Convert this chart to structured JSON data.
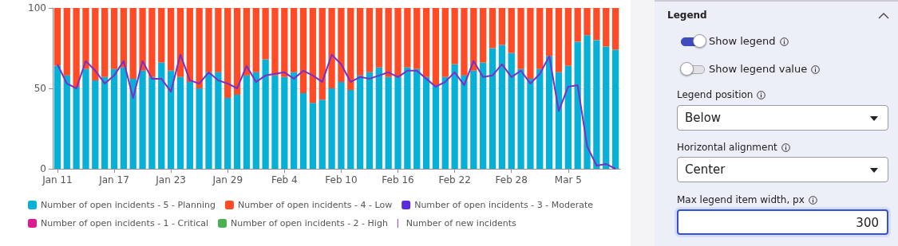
{
  "chart_data": {
    "type": "bar",
    "stacked": true,
    "categories": [
      "Jan 11",
      null,
      null,
      null,
      null,
      null,
      "Jan 17",
      null,
      null,
      null,
      null,
      null,
      "Jan 23",
      null,
      null,
      null,
      null,
      null,
      "Jan 29",
      null,
      null,
      null,
      null,
      null,
      "Feb 4",
      null,
      null,
      null,
      null,
      null,
      "Feb 10",
      null,
      null,
      null,
      null,
      null,
      "Feb 16",
      null,
      null,
      null,
      null,
      null,
      "Feb 22",
      null,
      null,
      null,
      null,
      null,
      "Feb 28",
      null,
      null,
      null,
      null,
      null,
      "Mar 5",
      null,
      null,
      null,
      null,
      null
    ],
    "series": [
      {
        "name": "Number of open incidents - 5 - Planning",
        "color": "#06b0d6",
        "values": [
          64,
          58,
          51,
          62,
          55,
          57,
          62,
          63,
          56,
          61,
          57,
          66,
          61,
          57,
          54,
          50,
          60,
          60,
          44,
          46,
          58,
          60,
          68,
          58,
          57,
          60,
          47,
          41,
          43,
          50,
          54,
          49,
          58,
          60,
          63,
          57,
          57,
          63,
          62,
          57,
          52,
          57,
          65,
          58,
          61,
          66,
          75,
          77,
          72,
          62,
          56,
          62,
          70,
          60,
          64,
          79,
          83,
          80,
          76,
          74
        ]
      },
      {
        "name": "Number of open incidents - 4 - Low",
        "color": "#ff4b26",
        "values": [
          36,
          42,
          49,
          38,
          45,
          43,
          38,
          37,
          44,
          39,
          43,
          34,
          39,
          43,
          46,
          50,
          40,
          40,
          56,
          54,
          42,
          40,
          32,
          42,
          43,
          40,
          53,
          59,
          57,
          50,
          46,
          51,
          42,
          40,
          37,
          43,
          43,
          37,
          38,
          43,
          48,
          43,
          35,
          42,
          39,
          34,
          25,
          23,
          28,
          38,
          44,
          38,
          30,
          40,
          36,
          21,
          17,
          20,
          24,
          26
        ]
      },
      {
        "name": "Number of open incidents - 3 - Moderate",
        "color": "#5a2bd8",
        "values": [
          0,
          0,
          0,
          0,
          0,
          0,
          0,
          0,
          0,
          0,
          0,
          0,
          0,
          0,
          0,
          0,
          0,
          0,
          0,
          0,
          0,
          0,
          0,
          0,
          0,
          0,
          0,
          0,
          0,
          0,
          0,
          0,
          0,
          0,
          0,
          0,
          0,
          0,
          0,
          0,
          0,
          0,
          0,
          0,
          0,
          0,
          0,
          0,
          0,
          0,
          0,
          0,
          0,
          0,
          0,
          0,
          0,
          0,
          0,
          0
        ]
      },
      {
        "name": "Number of open incidents - 1 - Critical",
        "color": "#dd1a8e",
        "values": [
          0,
          0,
          0,
          0,
          0,
          0,
          0,
          0,
          0,
          0,
          0,
          0,
          0,
          0,
          0,
          0,
          0,
          0,
          0,
          0,
          0,
          0,
          0,
          0,
          0,
          0,
          0,
          0,
          0,
          0,
          0,
          0,
          0,
          0,
          0,
          0,
          0,
          0,
          0,
          0,
          0,
          0,
          0,
          0,
          0,
          0,
          0,
          0,
          0,
          0,
          0,
          0,
          0,
          0,
          0,
          0,
          0,
          0,
          0,
          0
        ]
      },
      {
        "name": "Number of open incidents - 2 - High",
        "color": "#4caf50",
        "values": [
          0,
          0,
          0,
          0,
          0,
          0,
          0,
          0,
          0,
          0,
          0,
          0,
          0,
          0,
          0,
          0,
          0,
          0,
          0,
          0,
          0,
          0,
          0,
          0,
          0,
          0,
          0,
          0,
          0,
          0,
          0,
          0,
          0,
          0,
          0,
          0,
          0,
          0,
          0,
          0,
          0,
          0,
          0,
          0,
          0,
          0,
          0,
          0,
          0,
          0,
          0,
          0,
          0,
          0,
          0,
          0,
          0,
          0,
          0,
          0
        ]
      },
      {
        "name": "Number of new incidents",
        "type": "line",
        "color": "#7b2fc4",
        "values": [
          65,
          53,
          50,
          67,
          61,
          53,
          58,
          67,
          44,
          67,
          56,
          56,
          48,
          71,
          55,
          53,
          60,
          55,
          53,
          50,
          64,
          54,
          58,
          59,
          60,
          56,
          61,
          58,
          54,
          71,
          65,
          54,
          57,
          56,
          58,
          60,
          57,
          61,
          61,
          56,
          51,
          54,
          60,
          52,
          67,
          57,
          58,
          65,
          57,
          61,
          53,
          59,
          70,
          36,
          51,
          52,
          14,
          2,
          3,
          0
        ]
      }
    ],
    "ylim": [
      0,
      100
    ],
    "yticks": [
      0,
      50,
      100
    ],
    "grid": "y",
    "legend": "bottom",
    "marker": "none",
    "annotations": [
      "Legend",
      "Show legend",
      "Show legend value",
      "Legend position",
      "Below",
      "Horizontal alignment",
      "Center",
      "Max legend item width, px",
      "300"
    ]
  }
}
